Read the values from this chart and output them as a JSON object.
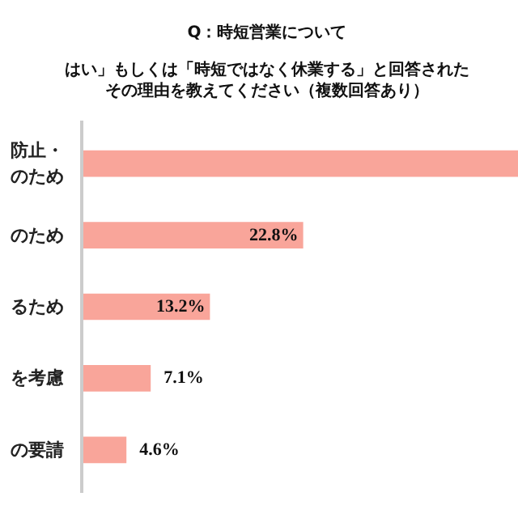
{
  "chart_data": {
    "type": "bar",
    "orientation": "horizontal",
    "title": "Q：時短営業について",
    "subtitle": "はい」もしくは「時短ではなく休業する」と回答されたその理由を教えてください（複数回答あり）",
    "categories": [
      "防止・のため",
      "のため",
      "るため",
      "を考慮",
      "の要請"
    ],
    "values": [
      45,
      22.8,
      13.2,
      7.1,
      4.6
    ],
    "value_labels": [
      null,
      "22.8%",
      "13.2%",
      "7.1%",
      "4.6%"
    ],
    "color": "#f9a59a",
    "grid": false
  }
}
